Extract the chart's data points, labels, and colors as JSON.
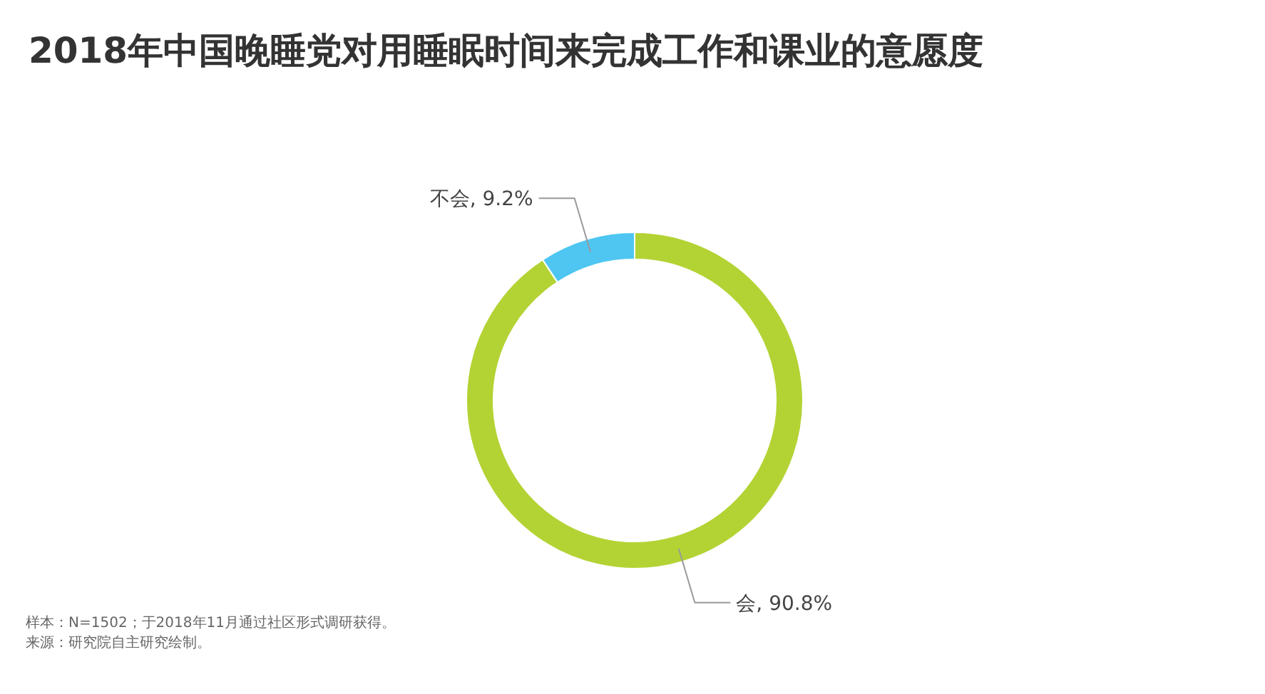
{
  "chart_data": {
    "type": "donut",
    "title": "2018年中国晚睡党对用睡眠时间来完成工作和课业的意愿度",
    "categories": [
      "会",
      "不会"
    ],
    "values": [
      90.8,
      9.2
    ],
    "colors": [
      "#b3d334",
      "#4ec6f1"
    ],
    "value_labels": [
      ", 90.8%",
      ", 9.2%"
    ],
    "annotations": [
      "样本：N=1502；于2018年11月通过社区形式调研获得。",
      "来源：研究院自主研究绘制。"
    ]
  }
}
